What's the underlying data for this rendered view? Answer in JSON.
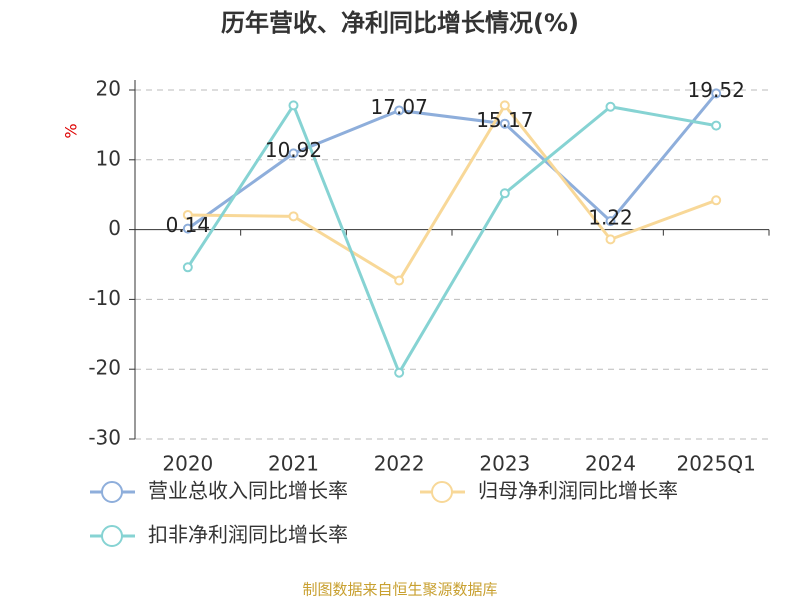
{
  "chart_data": {
    "type": "line",
    "title": "历年营收、净利同比增长情况(%)",
    "y_label": "%",
    "categories": [
      "2020",
      "2021",
      "2022",
      "2023",
      "2024",
      "2025Q1"
    ],
    "series": [
      {
        "name": "营业总收入同比增长率",
        "color": "#8eaedb",
        "values": [
          0.14,
          10.92,
          17.07,
          15.17,
          1.22,
          19.52
        ],
        "show_labels": true
      },
      {
        "name": "归母净利润同比增长率",
        "color": "#f8d898",
        "values": [
          2.1,
          1.9,
          -7.3,
          17.8,
          -1.4,
          4.2
        ],
        "show_labels": false
      },
      {
        "name": "扣非净利润同比增长率",
        "color": "#86d3d3",
        "values": [
          -5.4,
          17.8,
          -20.5,
          5.2,
          17.6,
          14.9
        ],
        "show_labels": false
      }
    ],
    "ylim": [
      -30,
      20
    ],
    "yticks": [
      -30,
      -20,
      -10,
      0,
      10,
      20
    ],
    "grid": true,
    "source": "制图数据来自恒生聚源数据库"
  }
}
